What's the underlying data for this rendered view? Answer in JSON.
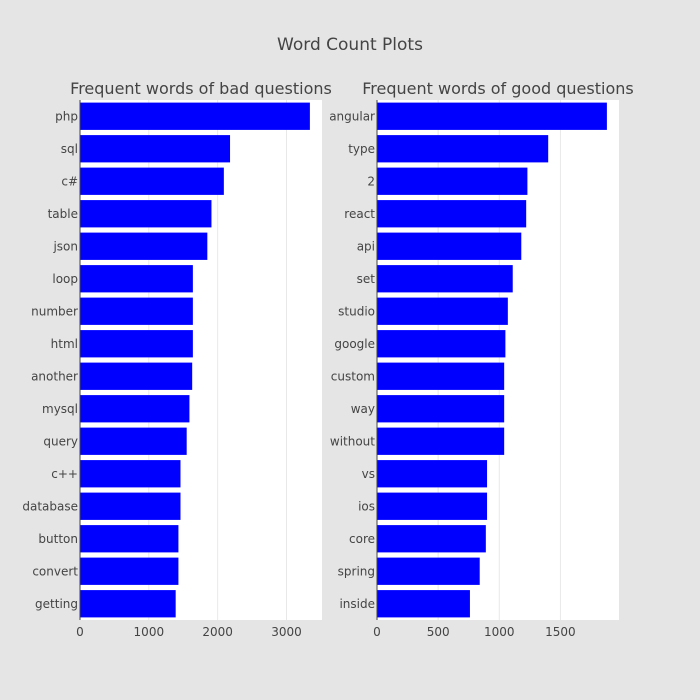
{
  "figure": {
    "title": "Word Count Plots"
  },
  "colors": {
    "bar": "#0000ff",
    "plot_bg": "#ffffff",
    "paper_bg": "#e5e5e5",
    "text": "#444444",
    "grid": "#e8e8e8"
  },
  "chart_data": [
    {
      "type": "bar",
      "orientation": "horizontal",
      "title": "Frequent words of bad questions",
      "categories": [
        "php",
        "sql",
        "c#",
        "table",
        "json",
        "loop",
        "number",
        "html",
        "another",
        "mysql",
        "query",
        "c++",
        "database",
        "button",
        "convert",
        "getting"
      ],
      "values": [
        3340,
        2180,
        2090,
        1910,
        1850,
        1640,
        1640,
        1640,
        1630,
        1590,
        1550,
        1460,
        1460,
        1430,
        1430,
        1390
      ],
      "xlim": [
        0,
        3516
      ],
      "xticks": [
        0,
        1000,
        2000,
        3000
      ],
      "xticklabels": [
        "0",
        "1000",
        "2000",
        "3000"
      ],
      "xlabel": "",
      "ylabel": "",
      "grid": true
    },
    {
      "type": "bar",
      "orientation": "horizontal",
      "title": "Frequent words of good questions",
      "categories": [
        "angular",
        "type",
        "2",
        "react",
        "api",
        "set",
        "studio",
        "google",
        "custom",
        "way",
        "without",
        "vs",
        "ios",
        "core",
        "spring",
        "inside"
      ],
      "values": [
        1880,
        1400,
        1230,
        1220,
        1180,
        1110,
        1070,
        1050,
        1040,
        1040,
        1040,
        900,
        900,
        890,
        840,
        760
      ],
      "xlim": [
        0,
        1979
      ],
      "xticks": [
        0,
        500,
        1000,
        1500
      ],
      "xticklabels": [
        "0",
        "500",
        "1000",
        "1500"
      ],
      "xlabel": "",
      "ylabel": "",
      "grid": true
    }
  ]
}
